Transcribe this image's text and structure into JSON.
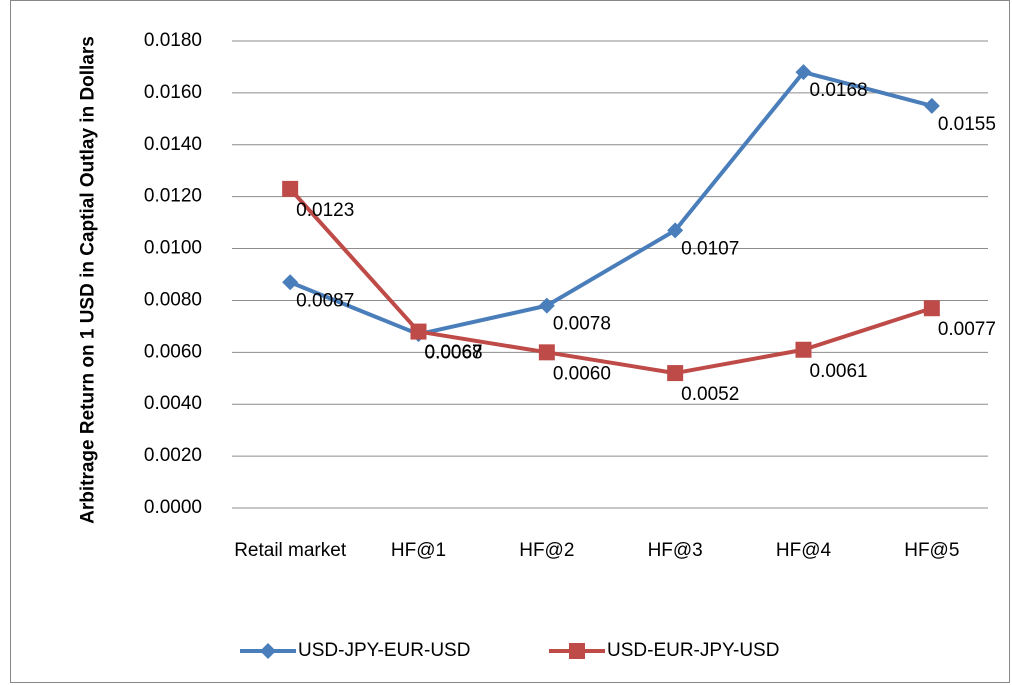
{
  "chart_data": {
    "type": "line",
    "y_label": "Arbitrage Return on 1 USD in Captial Outlay in Dollars",
    "categories": [
      "Retail market",
      "HF@1",
      "HF@2",
      "HF@3",
      "HF@4",
      "HF@5"
    ],
    "series": [
      {
        "name": "USD-JPY-EUR-USD",
        "color": "#4a7ebb",
        "marker": "diamond",
        "values": [
          0.0087,
          0.0067,
          0.0078,
          0.0107,
          0.0168,
          0.0155
        ],
        "value_labels": [
          "0.0087",
          "0.0067",
          "0.0078",
          "0.0107",
          "0.0168",
          "0.0155"
        ]
      },
      {
        "name": "USD-EUR-JPY-USD",
        "color": "#be4b48",
        "marker": "square",
        "values": [
          0.0123,
          0.0068,
          0.006,
          0.0052,
          0.0061,
          0.0077
        ],
        "value_labels": [
          "0.0123",
          "0.0068",
          "0.0060",
          "0.0052",
          "0.0061",
          "0.0077"
        ]
      }
    ],
    "ylim": [
      0,
      0.018
    ],
    "yticks": [
      {
        "value": 0,
        "label": "0.0000"
      },
      {
        "value": 0.002,
        "label": "0.0020"
      },
      {
        "value": 0.004,
        "label": "0.0040"
      },
      {
        "value": 0.006,
        "label": "0.0060"
      },
      {
        "value": 0.008,
        "label": "0.0080"
      },
      {
        "value": 0.01,
        "label": "0.0100"
      },
      {
        "value": 0.012,
        "label": "0.0120"
      },
      {
        "value": 0.014,
        "label": "0.0140"
      },
      {
        "value": 0.016,
        "label": "0.0160"
      },
      {
        "value": 0.018,
        "label": "0.0180"
      }
    ],
    "grid": true,
    "legend": "bottom"
  }
}
